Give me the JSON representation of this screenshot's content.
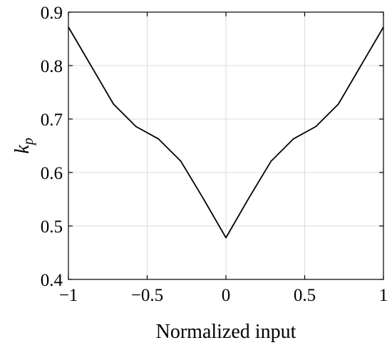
{
  "chart_data": {
    "type": "line",
    "title": "",
    "xlabel": "Normalized input",
    "ylabel_main": "k",
    "ylabel_sub": "p",
    "xlim": [
      -1,
      1
    ],
    "ylim": [
      0.4,
      0.9
    ],
    "grid": true,
    "x_ticks": [
      -1,
      -0.5,
      0,
      0.5,
      1
    ],
    "x_tick_labels": [
      "−1",
      "−0.5",
      "0",
      "0.5",
      "1"
    ],
    "y_ticks": [
      0.4,
      0.5,
      0.6,
      0.7,
      0.8,
      0.9
    ],
    "y_tick_labels": [
      "0.4",
      "0.5",
      "0.6",
      "0.7",
      "0.8",
      "0.9"
    ],
    "series": [
      {
        "x": [
          -1,
          -0.857,
          -0.714,
          -0.571,
          -0.429,
          -0.286,
          -0.143,
          0,
          0.143,
          0.286,
          0.429,
          0.571,
          0.714,
          0.857,
          1
        ],
        "y": [
          0.872,
          0.8,
          0.728,
          0.686,
          0.663,
          0.621,
          0.551,
          0.478,
          0.551,
          0.621,
          0.663,
          0.686,
          0.728,
          0.8,
          0.872
        ],
        "color": "#000000"
      }
    ]
  }
}
